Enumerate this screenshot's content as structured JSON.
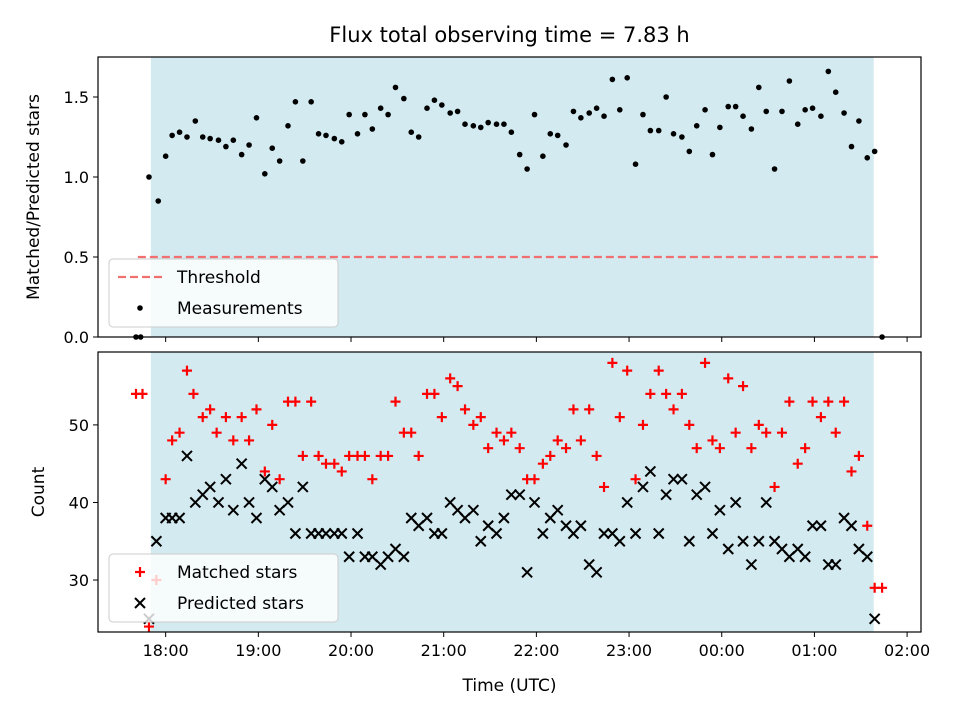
{
  "chart_data": {
    "title": "Flux total observing time = 7.83 h",
    "xlabel": "Time (UTC)",
    "x_ticks": [
      "18:00",
      "19:00",
      "20:00",
      "21:00",
      "22:00",
      "23:00",
      "00:00",
      "01:00",
      "02:00"
    ],
    "x_range_hours": [
      17.27,
      26.15
    ],
    "observing_window_hours": [
      17.84,
      25.64
    ],
    "colors": {
      "window": "#d3eaf0",
      "threshold": "#f07070",
      "matched": "#ff0000",
      "predicted": "#000000",
      "measurements": "#000000"
    },
    "panels": [
      {
        "type": "scatter",
        "ylabel": "Matched/Predicted stars",
        "ylim": [
          0,
          1.75
        ],
        "y_ticks": [
          "0.0",
          "0.5",
          "1.0",
          "1.5"
        ],
        "threshold": {
          "name": "Threshold",
          "value": 0.5,
          "x_range_hours": [
            17.7,
            25.7
          ]
        },
        "legend": [
          "Threshold",
          "Measurements"
        ],
        "legend_position": "lower left",
        "series": [
          {
            "name": "Measurements",
            "x": [
              17.68,
              17.73,
              17.82,
              17.92,
              18.0,
              18.07,
              18.15,
              18.23,
              18.32,
              18.4,
              18.48,
              18.57,
              18.65,
              18.73,
              18.82,
              18.9,
              18.98,
              19.07,
              19.15,
              19.23,
              19.32,
              19.4,
              19.48,
              19.57,
              19.65,
              19.73,
              19.82,
              19.9,
              19.98,
              20.07,
              20.15,
              20.23,
              20.32,
              20.4,
              20.48,
              20.57,
              20.65,
              20.73,
              20.82,
              20.9,
              20.98,
              21.07,
              21.15,
              21.23,
              21.32,
              21.4,
              21.48,
              21.57,
              21.65,
              21.73,
              21.82,
              21.9,
              21.98,
              22.07,
              22.15,
              22.23,
              22.32,
              22.4,
              22.48,
              22.57,
              22.65,
              22.73,
              22.82,
              22.9,
              22.98,
              23.07,
              23.15,
              23.23,
              23.32,
              23.4,
              23.48,
              23.57,
              23.65,
              23.73,
              23.82,
              23.9,
              23.98,
              24.07,
              24.15,
              24.23,
              24.32,
              24.4,
              24.48,
              24.57,
              24.65,
              24.73,
              24.82,
              24.9,
              24.98,
              25.07,
              25.15,
              25.23,
              25.32,
              25.4,
              25.48,
              25.57,
              25.65,
              25.73
            ],
            "y": [
              0.0,
              0.0,
              1.0,
              0.85,
              1.13,
              1.26,
              1.28,
              1.25,
              1.35,
              1.25,
              1.24,
              1.23,
              1.19,
              1.23,
              1.14,
              1.2,
              1.37,
              1.02,
              1.18,
              1.1,
              1.32,
              1.47,
              1.1,
              1.47,
              1.27,
              1.26,
              1.24,
              1.22,
              1.39,
              1.27,
              1.39,
              1.3,
              1.43,
              1.39,
              1.56,
              1.49,
              1.28,
              1.25,
              1.43,
              1.48,
              1.45,
              1.4,
              1.41,
              1.33,
              1.32,
              1.31,
              1.34,
              1.33,
              1.33,
              1.28,
              1.14,
              1.05,
              1.39,
              1.13,
              1.27,
              1.26,
              1.2,
              1.41,
              1.37,
              1.4,
              1.43,
              1.38,
              1.61,
              1.42,
              1.62,
              1.08,
              1.39,
              1.29,
              1.29,
              1.5,
              1.27,
              1.25,
              1.16,
              1.32,
              1.42,
              1.14,
              1.31,
              1.44,
              1.44,
              1.38,
              1.3,
              1.56,
              1.41,
              1.05,
              1.41,
              1.6,
              1.33,
              1.42,
              1.43,
              1.38,
              1.66,
              1.53,
              1.4,
              1.19,
              1.35,
              1.12,
              1.16,
              0.0
            ]
          }
        ]
      },
      {
        "type": "scatter",
        "ylabel": "Count",
        "ylim": [
          23.3,
          59.4
        ],
        "y_ticks": [
          "30",
          "40",
          "50"
        ],
        "legend": [
          "Matched stars",
          "Predicted stars"
        ],
        "legend_position": "lower left",
        "series": [
          {
            "name": "Matched stars",
            "x": [
              17.68,
              17.75,
              17.82,
              17.9,
              18.0,
              18.07,
              18.15,
              18.23,
              18.3,
              18.4,
              18.48,
              18.55,
              18.65,
              18.73,
              18.82,
              18.9,
              18.98,
              19.07,
              19.15,
              19.23,
              19.32,
              19.4,
              19.48,
              19.57,
              19.65,
              19.73,
              19.82,
              19.9,
              19.98,
              20.07,
              20.15,
              20.23,
              20.32,
              20.4,
              20.48,
              20.57,
              20.65,
              20.73,
              20.82,
              20.9,
              20.98,
              21.07,
              21.15,
              21.23,
              21.32,
              21.4,
              21.48,
              21.57,
              21.65,
              21.73,
              21.82,
              21.9,
              21.98,
              22.07,
              22.15,
              22.23,
              22.32,
              22.4,
              22.48,
              22.57,
              22.65,
              22.73,
              22.82,
              22.9,
              22.98,
              23.07,
              23.15,
              23.23,
              23.32,
              23.4,
              23.48,
              23.57,
              23.65,
              23.73,
              23.82,
              23.9,
              23.98,
              24.07,
              24.15,
              24.23,
              24.32,
              24.4,
              24.48,
              24.57,
              24.65,
              24.73,
              24.82,
              24.9,
              24.98,
              25.07,
              25.15,
              25.23,
              25.32,
              25.4,
              25.48,
              25.57,
              25.65,
              25.73
            ],
            "y": [
              54,
              54,
              24,
              30,
              43,
              48,
              49,
              57,
              54,
              51,
              52,
              49,
              51,
              48,
              51,
              48,
              52,
              44,
              50,
              43,
              53,
              53,
              46,
              53,
              46,
              45,
              45,
              44,
              46,
              46,
              46,
              43,
              46,
              46,
              53,
              49,
              49,
              46,
              54,
              54,
              51,
              56,
              55,
              52,
              50,
              51,
              47,
              49,
              48,
              49,
              47,
              43,
              43,
              45,
              46,
              48,
              47,
              52,
              48,
              52,
              46,
              42,
              58,
              51,
              57,
              43,
              50,
              54,
              57,
              54,
              52,
              54,
              50,
              47,
              58,
              48,
              47,
              56,
              49,
              55,
              47,
              50,
              49,
              42,
              49,
              53,
              45,
              47,
              53,
              51,
              53,
              49,
              53,
              44,
              46,
              37,
              29,
              29
            ]
          },
          {
            "name": "Predicted stars",
            "x": [
              17.82,
              17.9,
              18.0,
              18.07,
              18.15,
              18.23,
              18.32,
              18.4,
              18.48,
              18.57,
              18.65,
              18.73,
              18.82,
              18.9,
              18.98,
              19.07,
              19.15,
              19.23,
              19.32,
              19.4,
              19.48,
              19.57,
              19.65,
              19.73,
              19.82,
              19.9,
              19.98,
              20.07,
              20.15,
              20.23,
              20.32,
              20.4,
              20.48,
              20.57,
              20.65,
              20.73,
              20.82,
              20.9,
              20.98,
              21.07,
              21.15,
              21.23,
              21.32,
              21.4,
              21.48,
              21.57,
              21.65,
              21.73,
              21.82,
              21.9,
              21.98,
              22.07,
              22.15,
              22.23,
              22.32,
              22.4,
              22.48,
              22.57,
              22.65,
              22.73,
              22.82,
              22.9,
              22.98,
              23.07,
              23.15,
              23.23,
              23.32,
              23.4,
              23.48,
              23.57,
              23.65,
              23.73,
              23.82,
              23.9,
              23.98,
              24.07,
              24.15,
              24.23,
              24.32,
              24.4,
              24.48,
              24.57,
              24.65,
              24.73,
              24.82,
              24.9,
              24.98,
              25.07,
              25.15,
              25.23,
              25.32,
              25.4,
              25.48,
              25.57,
              25.65
            ],
            "y": [
              25,
              35,
              38,
              38,
              38,
              46,
              40,
              41,
              42,
              40,
              43,
              39,
              45,
              40,
              38,
              43,
              42,
              39,
              40,
              36,
              42,
              36,
              36,
              36,
              36,
              36,
              33,
              36,
              33,
              33,
              32,
              33,
              34,
              33,
              38,
              37,
              38,
              36,
              36,
              40,
              39,
              38,
              39,
              35,
              37,
              36,
              38,
              41,
              41,
              31,
              40,
              36,
              38,
              39,
              37,
              36,
              37,
              32,
              31,
              36,
              36,
              35,
              40,
              36,
              42,
              44,
              36,
              41,
              43,
              43,
              35,
              41,
              42,
              36,
              39,
              34,
              40,
              35,
              32,
              35,
              40,
              35,
              34,
              33,
              34,
              33,
              37,
              37,
              32,
              32,
              38,
              37,
              34,
              33,
              25
            ]
          }
        ]
      }
    ]
  }
}
